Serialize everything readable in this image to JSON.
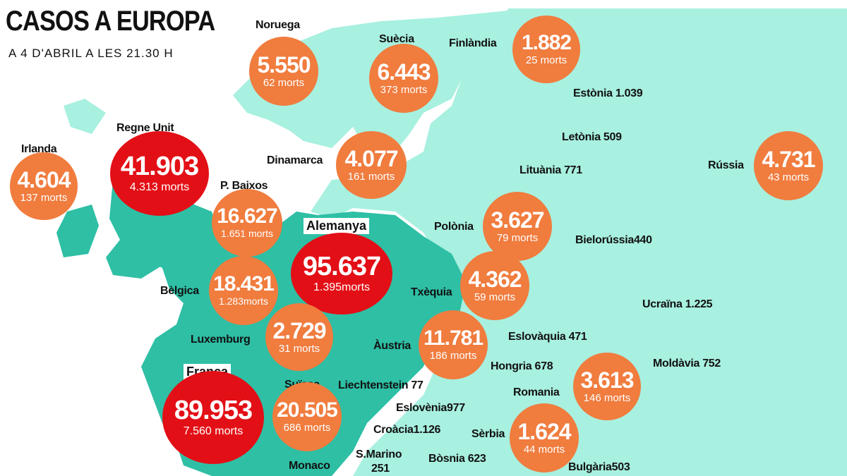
{
  "header": {
    "title": "CASOS A EUROPA",
    "subtitle": "A 4 D'ABRIL A LES 21.30 H"
  },
  "map_colors": {
    "land_highlight": "#2ebfa5",
    "land_other": "#a8f0e0",
    "bubble_orange": "#f07c3e",
    "bubble_red": "#e30f16"
  },
  "countries": {
    "noruega": {
      "name": "Noruega",
      "cases": "5.550",
      "deaths": "62 morts"
    },
    "suecia": {
      "name": "Suècia",
      "cases": "6.443",
      "deaths": "373 morts"
    },
    "finlandia": {
      "name": "Finlàndia",
      "cases": "1.882",
      "deaths": "25 morts"
    },
    "irlanda": {
      "name": "Irlanda",
      "cases": "4.604",
      "deaths": "137 morts"
    },
    "regne_unit": {
      "name": "Regne Unit",
      "cases": "41.903",
      "deaths": "4.313 morts"
    },
    "dinamarca": {
      "name": "Dinamarca",
      "cases": "4.077",
      "deaths": "161 morts"
    },
    "russia": {
      "name": "Rússia",
      "cases": "4.731",
      "deaths": "43 morts"
    },
    "p_baixos": {
      "name": "P. Baixos",
      "cases": "16.627",
      "deaths": "1.651 morts"
    },
    "alemanya": {
      "name": "Alemanya",
      "cases": "95.637",
      "deaths": "1.395morts"
    },
    "polonia": {
      "name": "Polònia",
      "cases": "3.627",
      "deaths": "79 morts"
    },
    "belgica": {
      "name": "Bèlgica",
      "cases": "18.431",
      "deaths": "1.283morts"
    },
    "txequia": {
      "name": "Txèquia",
      "cases": "4.362",
      "deaths": "59 morts"
    },
    "luxemburg": {
      "name": "Luxemburg",
      "cases": "2.729",
      "deaths": "31 morts"
    },
    "austria": {
      "name": "Àustria",
      "cases": "11.781",
      "deaths": "186 morts"
    },
    "franca": {
      "name": "França",
      "cases": "89.953",
      "deaths": "7.560 morts"
    },
    "suissa": {
      "name": "Suïssa",
      "cases": "20.505",
      "deaths": "686 morts"
    },
    "romania": {
      "name": "Romania",
      "cases": "3.613",
      "deaths": "146 morts"
    },
    "serbia": {
      "name": "Sèrbia",
      "cases": "1.624",
      "deaths": "44 morts"
    }
  },
  "small_labels": {
    "estonia": "Estònia 1.039",
    "letonia": "Letònia 509",
    "lituania": "Lituània 771",
    "bielorussia": "Bielorússia440",
    "ucraina": "Ucraïna 1.225",
    "eslovaquia": "Eslovàquia 471",
    "hongria": "Hongria 678",
    "moldavia": "Moldàvia 752",
    "liechtenstein": "Liechtenstein 77",
    "eslovenia": "Eslovènia977",
    "croacia": "Croàcia1.126",
    "bosnia": "Bòsnia 623",
    "bulgaria": "Bulgària503",
    "s_marino_name": "S.Marino",
    "s_marino_value": "251",
    "monaco": "Monaco"
  }
}
